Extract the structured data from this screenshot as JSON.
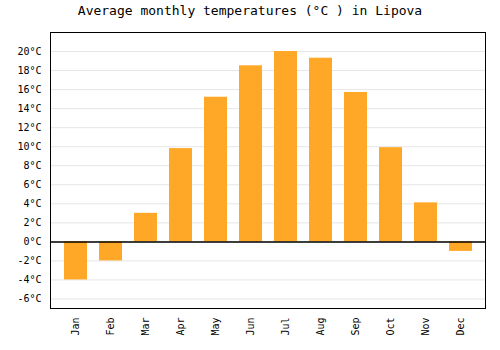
{
  "chart_data": {
    "type": "bar",
    "title": "Average monthly temperatures (°C ) in Lipova",
    "categories": [
      "Jan",
      "Feb",
      "Mar",
      "Apr",
      "May",
      "Jun",
      "Jul",
      "Aug",
      "Sep",
      "Oct",
      "Nov",
      "Dec"
    ],
    "values": [
      -4.0,
      -2.0,
      3.0,
      9.8,
      15.2,
      18.5,
      20.0,
      19.3,
      15.7,
      9.9,
      4.1,
      -1.0
    ],
    "color": "#FFA726",
    "ylim": [
      -7,
      22
    ],
    "yticks": [
      {
        "value": -6,
        "label": "-6°C"
      },
      {
        "value": -4,
        "label": "-4°C"
      },
      {
        "value": -2,
        "label": "-2°C"
      },
      {
        "value": 0,
        "label": "0°C"
      },
      {
        "value": 2,
        "label": "2°C"
      },
      {
        "value": 4,
        "label": "4°C"
      },
      {
        "value": 6,
        "label": "6°C"
      },
      {
        "value": 8,
        "label": "8°C"
      },
      {
        "value": 10,
        "label": "10°C"
      },
      {
        "value": 12,
        "label": "12°C"
      },
      {
        "value": 14,
        "label": "14°C"
      },
      {
        "value": 16,
        "label": "16°C"
      },
      {
        "value": 18,
        "label": "18°C"
      },
      {
        "value": 20,
        "label": "20°C"
      }
    ],
    "grid": true
  }
}
